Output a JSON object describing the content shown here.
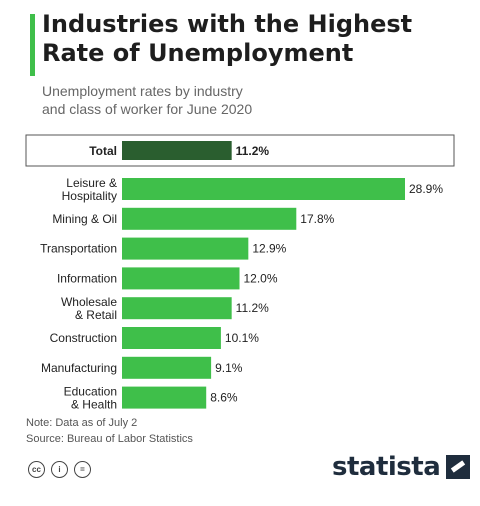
{
  "chart_data": {
    "type": "bar",
    "title": "Industries with the Highest Rate of Unemployment",
    "subtitle_lines": [
      "Unemployment rates by industry",
      "and class of worker for June 2020"
    ],
    "total": {
      "label": "Total",
      "value": 11.2,
      "display": "11.2%"
    },
    "categories": [
      [
        "Leisure &",
        "Hospitality"
      ],
      [
        "Mining & Oil"
      ],
      [
        "Transportation"
      ],
      [
        "Information"
      ],
      [
        "Wholesale",
        "& Retail"
      ],
      [
        "Construction"
      ],
      [
        "Manufacturing"
      ],
      [
        "Education",
        "& Health"
      ]
    ],
    "values": [
      28.9,
      17.8,
      12.9,
      12.0,
      11.2,
      10.1,
      9.1,
      8.6
    ],
    "value_labels": [
      "28.9%",
      "17.8%",
      "12.9%",
      "12.0%",
      "11.2%",
      "10.1%",
      "9.1%",
      "8.6%"
    ],
    "xlim": [
      0,
      28.9
    ],
    "grid": false,
    "colors": {
      "bar": "#3fbf4a",
      "total_bar": "#2a5e2f",
      "accent": "#3fbf4a"
    }
  },
  "footer": {
    "note": "Note: Data as of July 2",
    "source": "Source: Bureau of Labor Statistics",
    "logo": "statista",
    "license_icons": [
      "cc-icon",
      "attribution-icon",
      "no-derivatives-icon"
    ],
    "license_glyphs": [
      "cc",
      "i",
      "="
    ]
  }
}
